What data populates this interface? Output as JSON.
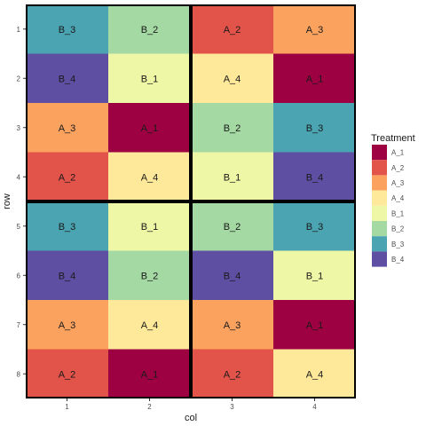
{
  "chart_data": {
    "type": "heatmap",
    "xlabel": "col",
    "ylabel": "row",
    "x_ticks": [
      "1",
      "2",
      "3",
      "4"
    ],
    "y_ticks": [
      "1",
      "2",
      "3",
      "4",
      "5",
      "6",
      "7",
      "8"
    ],
    "legend": {
      "title": "Treatment",
      "placement": "right",
      "entries": [
        "A_1",
        "A_2",
        "A_3",
        "A_4",
        "B_1",
        "B_2",
        "B_3",
        "B_4"
      ]
    },
    "colors": {
      "A_1": "#9e0142",
      "A_2": "#e2534a",
      "A_3": "#fba25f",
      "A_4": "#fee89a",
      "B_1": "#eef7a6",
      "B_2": "#a4d9a4",
      "B_3": "#4ba4b1",
      "B_4": "#5e4fa2"
    },
    "block_borders": true,
    "grid": false,
    "cells": [
      {
        "row": 1,
        "col": 1,
        "treatment": "B_3"
      },
      {
        "row": 1,
        "col": 2,
        "treatment": "B_2"
      },
      {
        "row": 1,
        "col": 3,
        "treatment": "A_2"
      },
      {
        "row": 1,
        "col": 4,
        "treatment": "A_3"
      },
      {
        "row": 2,
        "col": 1,
        "treatment": "B_4"
      },
      {
        "row": 2,
        "col": 2,
        "treatment": "B_1"
      },
      {
        "row": 2,
        "col": 3,
        "treatment": "A_4"
      },
      {
        "row": 2,
        "col": 4,
        "treatment": "A_1"
      },
      {
        "row": 3,
        "col": 1,
        "treatment": "A_3"
      },
      {
        "row": 3,
        "col": 2,
        "treatment": "A_1"
      },
      {
        "row": 3,
        "col": 3,
        "treatment": "B_2"
      },
      {
        "row": 3,
        "col": 4,
        "treatment": "B_3"
      },
      {
        "row": 4,
        "col": 1,
        "treatment": "A_2"
      },
      {
        "row": 4,
        "col": 2,
        "treatment": "A_4"
      },
      {
        "row": 4,
        "col": 3,
        "treatment": "B_1"
      },
      {
        "row": 4,
        "col": 4,
        "treatment": "B_4"
      },
      {
        "row": 5,
        "col": 1,
        "treatment": "B_3"
      },
      {
        "row": 5,
        "col": 2,
        "treatment": "B_1"
      },
      {
        "row": 5,
        "col": 3,
        "treatment": "B_2"
      },
      {
        "row": 5,
        "col": 4,
        "treatment": "B_3"
      },
      {
        "row": 6,
        "col": 1,
        "treatment": "B_4"
      },
      {
        "row": 6,
        "col": 2,
        "treatment": "B_2"
      },
      {
        "row": 6,
        "col": 3,
        "treatment": "B_4"
      },
      {
        "row": 6,
        "col": 4,
        "treatment": "B_1"
      },
      {
        "row": 7,
        "col": 1,
        "treatment": "A_3"
      },
      {
        "row": 7,
        "col": 2,
        "treatment": "A_4"
      },
      {
        "row": 7,
        "col": 3,
        "treatment": "A_3"
      },
      {
        "row": 7,
        "col": 4,
        "treatment": "A_1"
      },
      {
        "row": 8,
        "col": 1,
        "treatment": "A_2"
      },
      {
        "row": 8,
        "col": 2,
        "treatment": "A_1"
      },
      {
        "row": 8,
        "col": 3,
        "treatment": "A_2"
      },
      {
        "row": 8,
        "col": 4,
        "treatment": "A_4"
      }
    ]
  }
}
